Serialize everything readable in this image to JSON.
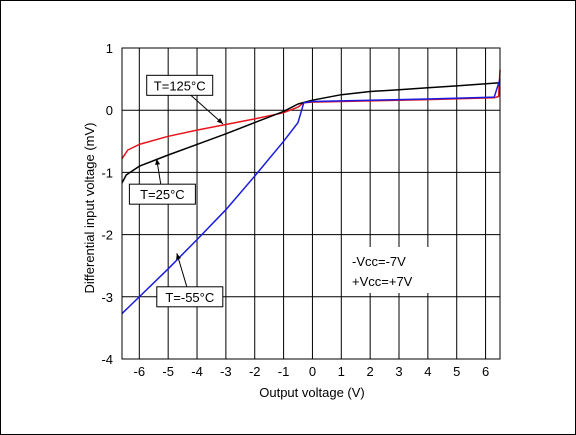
{
  "chart_data": {
    "type": "line",
    "xlabel": "Output voltage (V)",
    "ylabel": "Differential input voltage (mV)",
    "xlim": [
      -6.6,
      6.5
    ],
    "ylim": [
      -4,
      1
    ],
    "x_ticks": [
      "-6",
      "-5",
      "-4",
      "-3",
      "-2",
      "-1",
      "0",
      "1",
      "2",
      "3",
      "4",
      "5",
      "6"
    ],
    "y_ticks": [
      "1",
      "0",
      "-1",
      "-2",
      "-3",
      "-4"
    ],
    "grid": true,
    "series": [
      {
        "name": "T=125°C",
        "color": "#e8141c",
        "points": [
          [
            -6.6,
            -0.78
          ],
          [
            -6.4,
            -0.64
          ],
          [
            -6.0,
            -0.55
          ],
          [
            -5.0,
            -0.42
          ],
          [
            -4.0,
            -0.32
          ],
          [
            -3.0,
            -0.23
          ],
          [
            -2.0,
            -0.14
          ],
          [
            -1.0,
            -0.04
          ],
          [
            -0.5,
            0.05
          ],
          [
            -0.3,
            0.12
          ],
          [
            0.0,
            0.13
          ],
          [
            2.0,
            0.15
          ],
          [
            4.0,
            0.17
          ],
          [
            6.3,
            0.2
          ],
          [
            6.45,
            0.22
          ],
          [
            6.5,
            0.65
          ]
        ]
      },
      {
        "name": "T=25°C",
        "color": "#000000",
        "points": [
          [
            -6.6,
            -1.17
          ],
          [
            -6.45,
            -1.04
          ],
          [
            -6.0,
            -0.9
          ],
          [
            -5.0,
            -0.72
          ],
          [
            -4.0,
            -0.55
          ],
          [
            -3.0,
            -0.38
          ],
          [
            -2.0,
            -0.2
          ],
          [
            -1.0,
            -0.02
          ],
          [
            -0.5,
            0.1
          ],
          [
            0.0,
            0.16
          ],
          [
            1.0,
            0.25
          ],
          [
            2.0,
            0.3
          ],
          [
            3.0,
            0.33
          ],
          [
            4.0,
            0.36
          ],
          [
            5.0,
            0.39
          ],
          [
            6.5,
            0.44
          ]
        ]
      },
      {
        "name": "T=-55°C",
        "color": "#1a1ae0",
        "points": [
          [
            -6.6,
            -3.27
          ],
          [
            -5.0,
            -2.55
          ],
          [
            -4.0,
            -2.08
          ],
          [
            -3.0,
            -1.6
          ],
          [
            -2.0,
            -1.06
          ],
          [
            -1.0,
            -0.5
          ],
          [
            -0.5,
            -0.2
          ],
          [
            -0.3,
            0.12
          ],
          [
            0.0,
            0.14
          ],
          [
            2.0,
            0.16
          ],
          [
            4.0,
            0.18
          ],
          [
            6.3,
            0.21
          ],
          [
            6.5,
            0.5
          ]
        ]
      }
    ],
    "annotations": [
      {
        "text": "T=125°C",
        "x": -4.6,
        "y": 0.4,
        "arrow_to": [
          -3.1,
          -0.22
        ]
      },
      {
        "text": "T=25°C",
        "x": -5.2,
        "y": -1.35,
        "arrow_to": [
          -5.4,
          -0.78
        ]
      },
      {
        "text": "T=-55°C",
        "x": -4.25,
        "y": -3.0,
        "arrow_to": [
          -4.7,
          -2.3
        ]
      }
    ],
    "condition_lines": [
      "-Vcc=-7V",
      "+Vcc=+7V"
    ]
  }
}
